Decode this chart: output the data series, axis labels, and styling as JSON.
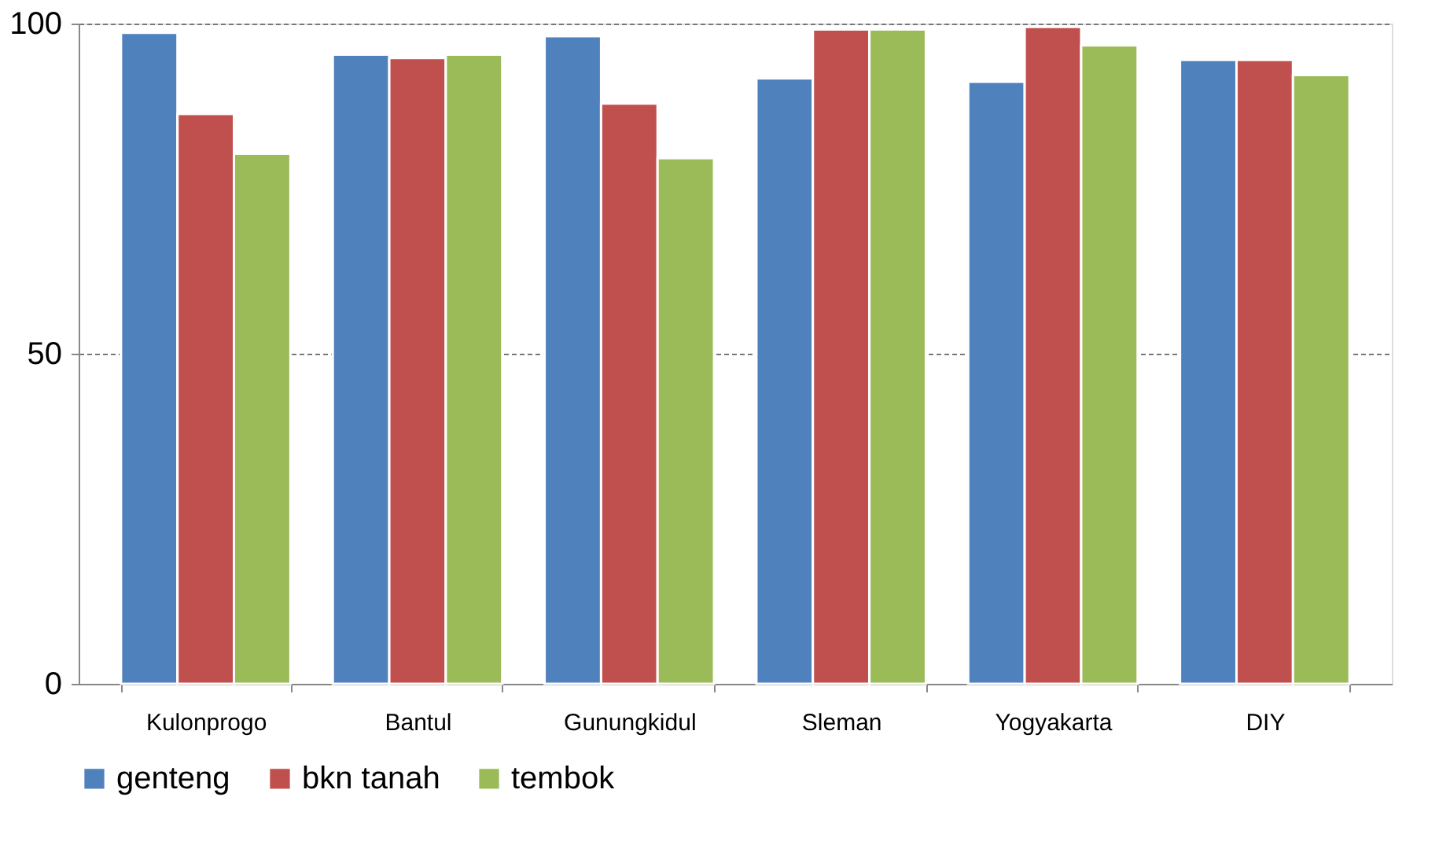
{
  "chart_data": {
    "type": "bar",
    "categories": [
      "Kulonprogo",
      "Bantul",
      "Gunungkidul",
      "Sleman",
      "Yogyakarta",
      "DIY"
    ],
    "series": [
      {
        "name": "genteng",
        "color": "#4f81bd",
        "values": [
          98.6,
          95.3,
          98.1,
          91.7,
          91.2,
          94.5
        ]
      },
      {
        "name": "bkn tanah",
        "color": "#c0504d",
        "values": [
          86.3,
          94.8,
          87.9,
          99.1,
          99.5,
          94.5
        ]
      },
      {
        "name": "tembok",
        "color": "#9bbb59",
        "values": [
          80.3,
          95.3,
          79.6,
          99.1,
          96.7,
          92.2
        ]
      }
    ],
    "ylim": [
      0,
      100
    ],
    "yticks": [
      0,
      50,
      100
    ],
    "grid": "y",
    "legend": "bottom"
  }
}
